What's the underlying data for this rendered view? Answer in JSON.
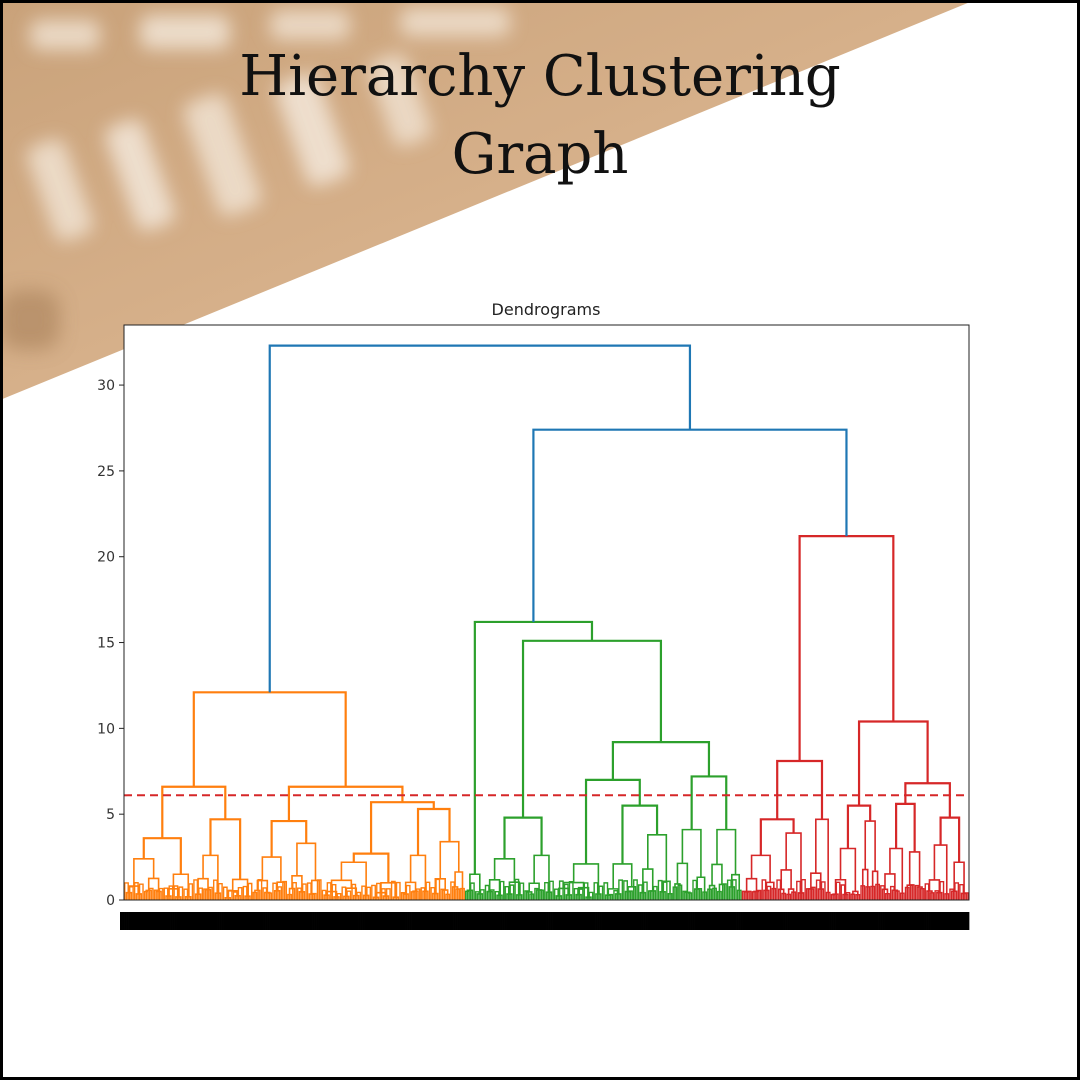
{
  "headline": {
    "line1": "Hierarchy Clustering",
    "line2": "Graph"
  },
  "chart_data": {
    "type": "dendrogram",
    "title": "Dendrograms",
    "xlabel": "",
    "ylabel": "",
    "ylim": [
      0,
      33.5
    ],
    "yticks": [
      0,
      5,
      10,
      15,
      20,
      25,
      30
    ],
    "x_tick_labels_note": "dense black unreadable leaf labels",
    "cut_line": {
      "y": 6.1,
      "color": "#d62728",
      "style": "dashed"
    },
    "colors": {
      "link": "#1f77b4",
      "cluster1": "#ff7f0e",
      "cluster2": "#2ca02c",
      "cluster3": "#d62728"
    },
    "tree": {
      "h": 32.3,
      "color": "#1f77b4",
      "children": [
        {
          "h": 12.1,
          "color": "#ff7f0e",
          "cluster": 1,
          "children": [
            {
              "h": 6.6,
              "color": "#ff7f0e",
              "children": [
                {
                  "h": 3.6,
                  "color": "#ff7f0e",
                  "children": [
                    {
                      "leaves": 8,
                      "h": 2.4
                    },
                    {
                      "leaves": 6,
                      "h": 1.5
                    }
                  ]
                },
                {
                  "h": 4.7,
                  "color": "#ff7f0e",
                  "children": [
                    {
                      "leaves": 6,
                      "h": 2.6
                    },
                    {
                      "leaves": 6,
                      "h": 1.2
                    }
                  ]
                }
              ]
            },
            {
              "h": 6.6,
              "color": "#ff7f0e",
              "children": [
                {
                  "h": 4.6,
                  "color": "#ff7f0e",
                  "children": [
                    {
                      "leaves": 7,
                      "h": 2.5
                    },
                    {
                      "leaves": 7,
                      "h": 3.3
                    }
                  ]
                },
                {
                  "h": 5.7,
                  "color": "#ff7f0e",
                  "children": [
                    {
                      "h": 2.7,
                      "color": "#ff7f0e",
                      "children": [
                        {
                          "leaves": 10,
                          "h": 2.2
                        },
                        {
                          "leaves": 6,
                          "h": 1.0
                        }
                      ]
                    },
                    {
                      "h": 5.3,
                      "color": "#ff7f0e",
                      "children": [
                        {
                          "leaves": 6,
                          "h": 2.6
                        },
                        {
                          "leaves": 7,
                          "h": 3.4
                        }
                      ]
                    }
                  ]
                }
              ]
            }
          ]
        },
        {
          "h": 27.4,
          "color": "#1f77b4",
          "children": [
            {
              "h": 16.2,
              "color": "#2ca02c",
              "cluster": 2,
              "children": [
                {
                  "leaves": 4,
                  "h": 1.5
                },
                {
                  "h": 15.1,
                  "color": "#2ca02c",
                  "children": [
                    {
                      "h": 4.8,
                      "color": "#2ca02c",
                      "children": [
                        {
                          "leaves": 8,
                          "h": 2.4
                        },
                        {
                          "leaves": 6,
                          "h": 2.6
                        }
                      ]
                    },
                    {
                      "h": 9.2,
                      "color": "#2ca02c",
                      "children": [
                        {
                          "h": 7.0,
                          "color": "#2ca02c",
                          "children": [
                            {
                              "leaves": 10,
                              "h": 2.1
                            },
                            {
                              "h": 5.5,
                              "color": "#2ca02c",
                              "children": [
                                {
                                  "leaves": 7,
                                  "h": 2.1
                                },
                                {
                                  "leaves": 7,
                                  "h": 3.8
                                }
                              ]
                            }
                          ]
                        },
                        {
                          "h": 7.2,
                          "color": "#2ca02c",
                          "children": [
                            {
                              "leaves": 7,
                              "h": 4.1
                            },
                            {
                              "leaves": 7,
                              "h": 4.1
                            }
                          ]
                        }
                      ]
                    }
                  ]
                }
              ]
            },
            {
              "h": 21.2,
              "color": "#d62728",
              "cluster": 3,
              "children": [
                {
                  "h": 8.1,
                  "color": "#d62728",
                  "children": [
                    {
                      "h": 4.7,
                      "color": "#d62728",
                      "children": [
                        {
                          "leaves": 7,
                          "h": 2.6
                        },
                        {
                          "leaves": 6,
                          "h": 3.9
                        }
                      ]
                    },
                    {
                      "leaves": 5,
                      "h": 4.7
                    }
                  ]
                },
                {
                  "h": 10.4,
                  "color": "#d62728",
                  "children": [
                    {
                      "h": 5.5,
                      "color": "#d62728",
                      "children": [
                        {
                          "leaves": 6,
                          "h": 3.0
                        },
                        {
                          "leaves": 4,
                          "h": 4.6
                        }
                      ]
                    },
                    {
                      "h": 6.8,
                      "color": "#d62728",
                      "children": [
                        {
                          "h": 5.6,
                          "color": "#d62728",
                          "children": [
                            {
                              "leaves": 5,
                              "h": 3.0
                            },
                            {
                              "leaves": 4,
                              "h": 2.8
                            }
                          ]
                        },
                        {
                          "h": 4.8,
                          "color": "#d62728",
                          "children": [
                            {
                              "leaves": 5,
                              "h": 3.2
                            },
                            {
                              "leaves": 4,
                              "h": 2.2
                            }
                          ]
                        }
                      ]
                    }
                  ]
                }
              ]
            }
          ]
        }
      ]
    }
  }
}
